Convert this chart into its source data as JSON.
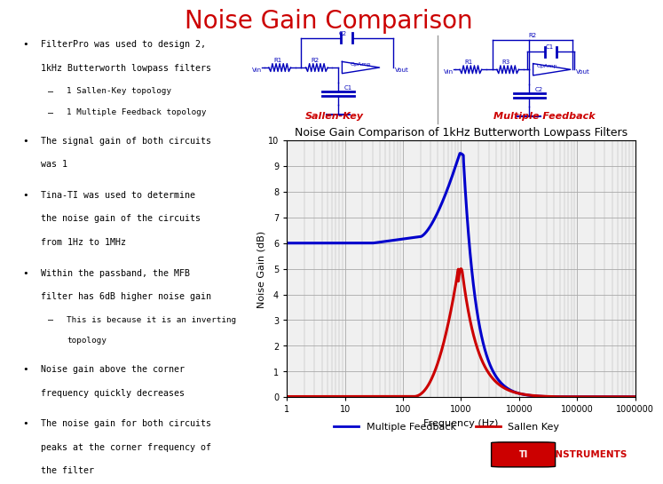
{
  "title": "Noise Gain Comparison",
  "title_color": "#CC0000",
  "title_fontsize": 20,
  "background_color": "#FFFFFF",
  "left_panel_bullets": [
    {
      "text": "FilterPro was used to design 2,\n1kHz Butterworth lowpass filters",
      "sub": [
        "1 Sallen-Key topology",
        "1 Multiple Feedback topology"
      ]
    },
    {
      "text": "The signal gain of both circuits\nwas 1",
      "sub": []
    },
    {
      "text": "Tina-TI was used to determine\nthe noise gain of the circuits\nfrom 1Hz to 1MHz",
      "sub": []
    },
    {
      "text": "Within the passband, the MFB\nfilter has 6dB higher noise gain",
      "sub": [
        "This is because it is an inverting\ntopology"
      ]
    },
    {
      "text": "Noise gain above the corner\nfrequency quickly decreases",
      "sub": []
    },
    {
      "text": "The noise gain for both circuits\npeaks at the corner frequency of\nthe filter",
      "sub": []
    }
  ],
  "chart_title": "Noise Gain Comparison of 1kHz Butterworth Lowpass Filters",
  "chart_title_fontsize": 9,
  "xlabel": "Frequency (Hz)",
  "ylabel": "Noise Gain (dB)",
  "ylim": [
    0,
    10
  ],
  "yticks": [
    0,
    1,
    2,
    3,
    4,
    5,
    6,
    7,
    8,
    9,
    10
  ],
  "xlog_ticks": [
    1,
    10,
    100,
    1000,
    10000,
    100000,
    1000000
  ],
  "xlog_labels": [
    "1",
    "10",
    "100",
    "1000",
    "10000",
    "100000",
    "1000000"
  ],
  "mfb_color": "#0000CC",
  "sk_color": "#CC0000",
  "legend_labels": [
    "Multiple Feedback",
    "Sallen Key"
  ],
  "circuit_label_color": "#CC0000",
  "ti_red": "#CC0000",
  "footer_bg": "#CCCCCC",
  "chart_bg": "#F0F0F0",
  "grid_color": "#AAAAAA"
}
